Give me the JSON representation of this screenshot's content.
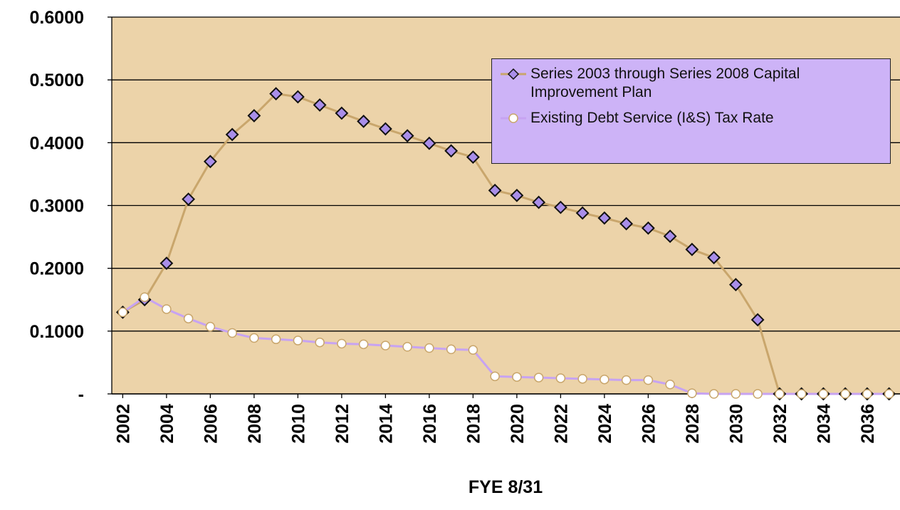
{
  "chart_data": {
    "type": "line",
    "x_label": "FYE 8/31",
    "x": [
      2002,
      2003,
      2004,
      2005,
      2006,
      2007,
      2008,
      2009,
      2010,
      2011,
      2012,
      2013,
      2014,
      2015,
      2016,
      2017,
      2018,
      2019,
      2020,
      2021,
      2022,
      2023,
      2024,
      2025,
      2026,
      2027,
      2028,
      2029,
      2030,
      2031,
      2032,
      2033,
      2034,
      2035,
      2036,
      2037
    ],
    "xlim": [
      2001.5,
      2037.5
    ],
    "xticks": [
      2002,
      2004,
      2006,
      2008,
      2010,
      2012,
      2014,
      2016,
      2018,
      2020,
      2022,
      2024,
      2026,
      2028,
      2030,
      2032,
      2034,
      2036
    ],
    "ylim": [
      0,
      0.6
    ],
    "yticks": [
      {
        "value": 0,
        "label": "-"
      },
      {
        "value": 0.1,
        "label": "0.1000"
      },
      {
        "value": 0.2,
        "label": "0.2000"
      },
      {
        "value": 0.3,
        "label": "0.3000"
      },
      {
        "value": 0.4,
        "label": "0.4000"
      },
      {
        "value": 0.5,
        "label": "0.5000"
      },
      {
        "value": 0.6,
        "label": "0.6000"
      }
    ],
    "grid": true,
    "plot_background": "#ecd3a9",
    "series": [
      {
        "name": "Series 2003 through Series 2008 Capital Improvement Plan",
        "color": "#c9a66c",
        "marker": "diamond",
        "marker_color": "#a98ee9",
        "values": [
          0.13,
          0.15,
          0.208,
          0.31,
          0.37,
          0.413,
          0.443,
          0.478,
          0.473,
          0.46,
          0.447,
          0.434,
          0.422,
          0.411,
          0.399,
          0.387,
          0.377,
          0.324,
          0.316,
          0.305,
          0.297,
          0.288,
          0.28,
          0.271,
          0.264,
          0.251,
          0.23,
          0.217,
          0.174,
          0.118,
          0,
          0,
          0,
          0,
          0,
          0
        ]
      },
      {
        "name": "Existing Debt Service (I&S) Tax Rate",
        "color": "#c7a3f2",
        "marker": "circle",
        "marker_color": "#ffffff",
        "values": [
          0.13,
          0.154,
          0.135,
          0.12,
          0.107,
          0.097,
          0.089,
          0.087,
          0.085,
          0.082,
          0.08,
          0.079,
          0.077,
          0.075,
          0.073,
          0.071,
          0.07,
          0.028,
          0.027,
          0.026,
          0.025,
          0.024,
          0.023,
          0.022,
          0.022,
          0.015,
          0.001,
          0,
          0,
          0,
          0,
          0,
          0,
          0,
          0,
          0
        ]
      }
    ]
  }
}
